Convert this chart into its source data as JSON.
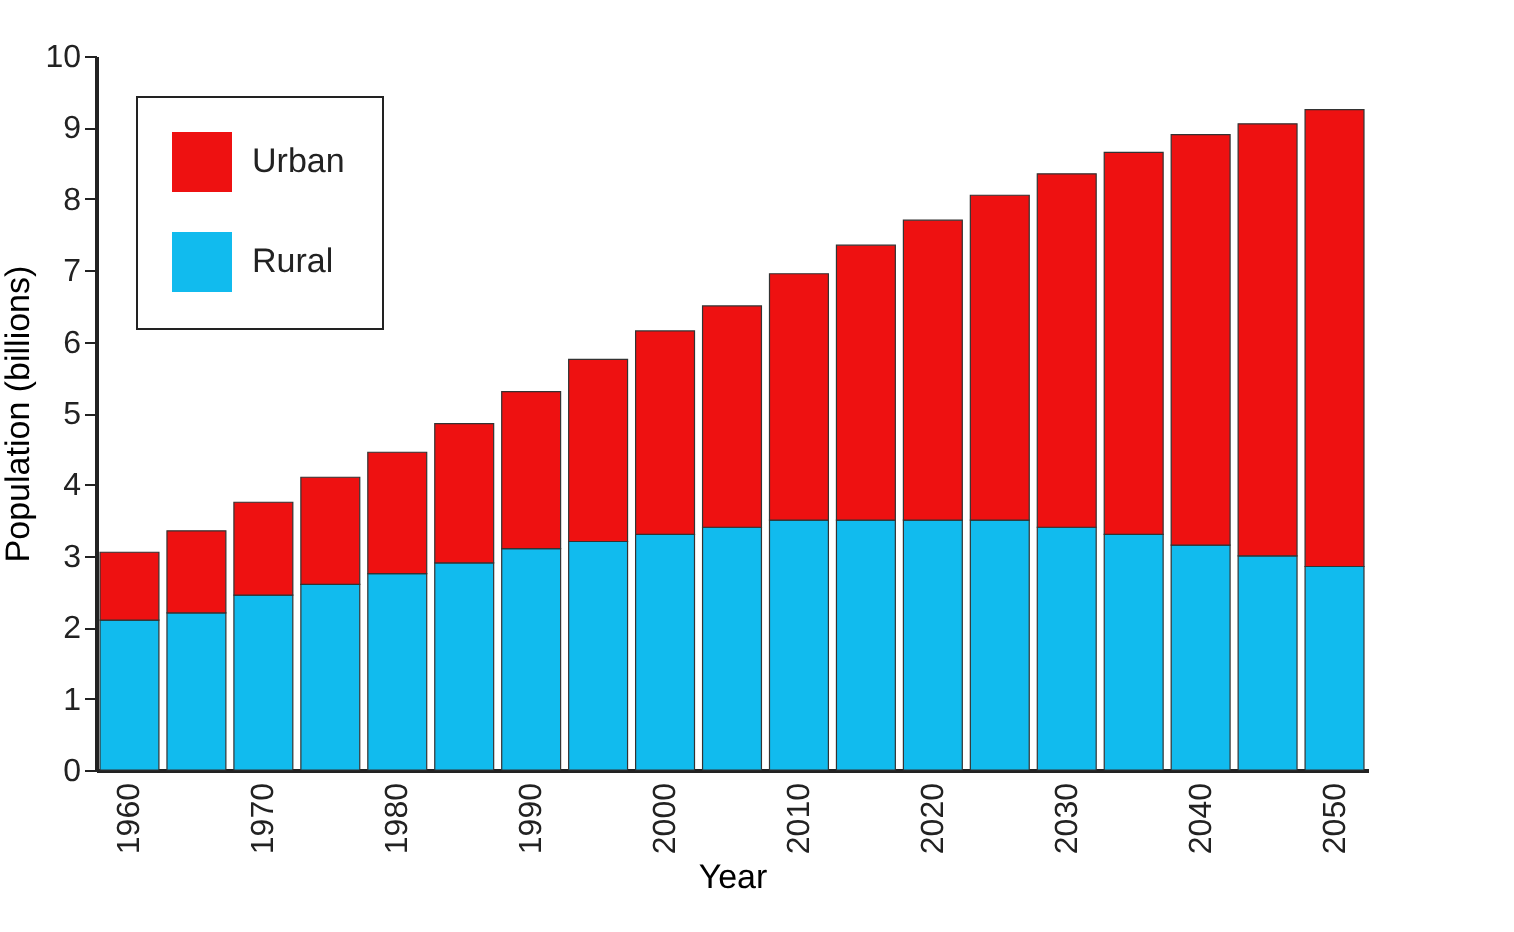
{
  "chart_data": {
    "type": "bar",
    "stacked": true,
    "xlabel": "Year",
    "ylabel": "Population (billions)",
    "categories": [
      "1960",
      null,
      "1970",
      null,
      "1980",
      null,
      "1990",
      null,
      "2000",
      null,
      "2010",
      null,
      "2020",
      null,
      "2030",
      null,
      "2040",
      null,
      "2050"
    ],
    "series": [
      {
        "name": "Rural",
        "color": "#11bbee",
        "values": [
          2.1,
          2.2,
          2.45,
          2.6,
          2.75,
          2.9,
          3.1,
          3.2,
          3.3,
          3.4,
          3.5,
          3.5,
          3.5,
          3.5,
          3.4,
          3.3,
          3.15,
          3.0,
          2.85
        ]
      },
      {
        "name": "Urban",
        "color": "#ee1111",
        "values": [
          0.95,
          1.15,
          1.3,
          1.5,
          1.7,
          1.95,
          2.2,
          2.55,
          2.85,
          3.1,
          3.45,
          3.85,
          4.2,
          4.55,
          4.95,
          5.35,
          5.75,
          6.05,
          6.4
        ]
      }
    ],
    "ylim": [
      0,
      10
    ],
    "yticks": [
      0,
      1,
      2,
      3,
      4,
      5,
      6,
      7,
      8,
      9,
      10
    ],
    "grid": false,
    "legend": "top left"
  }
}
